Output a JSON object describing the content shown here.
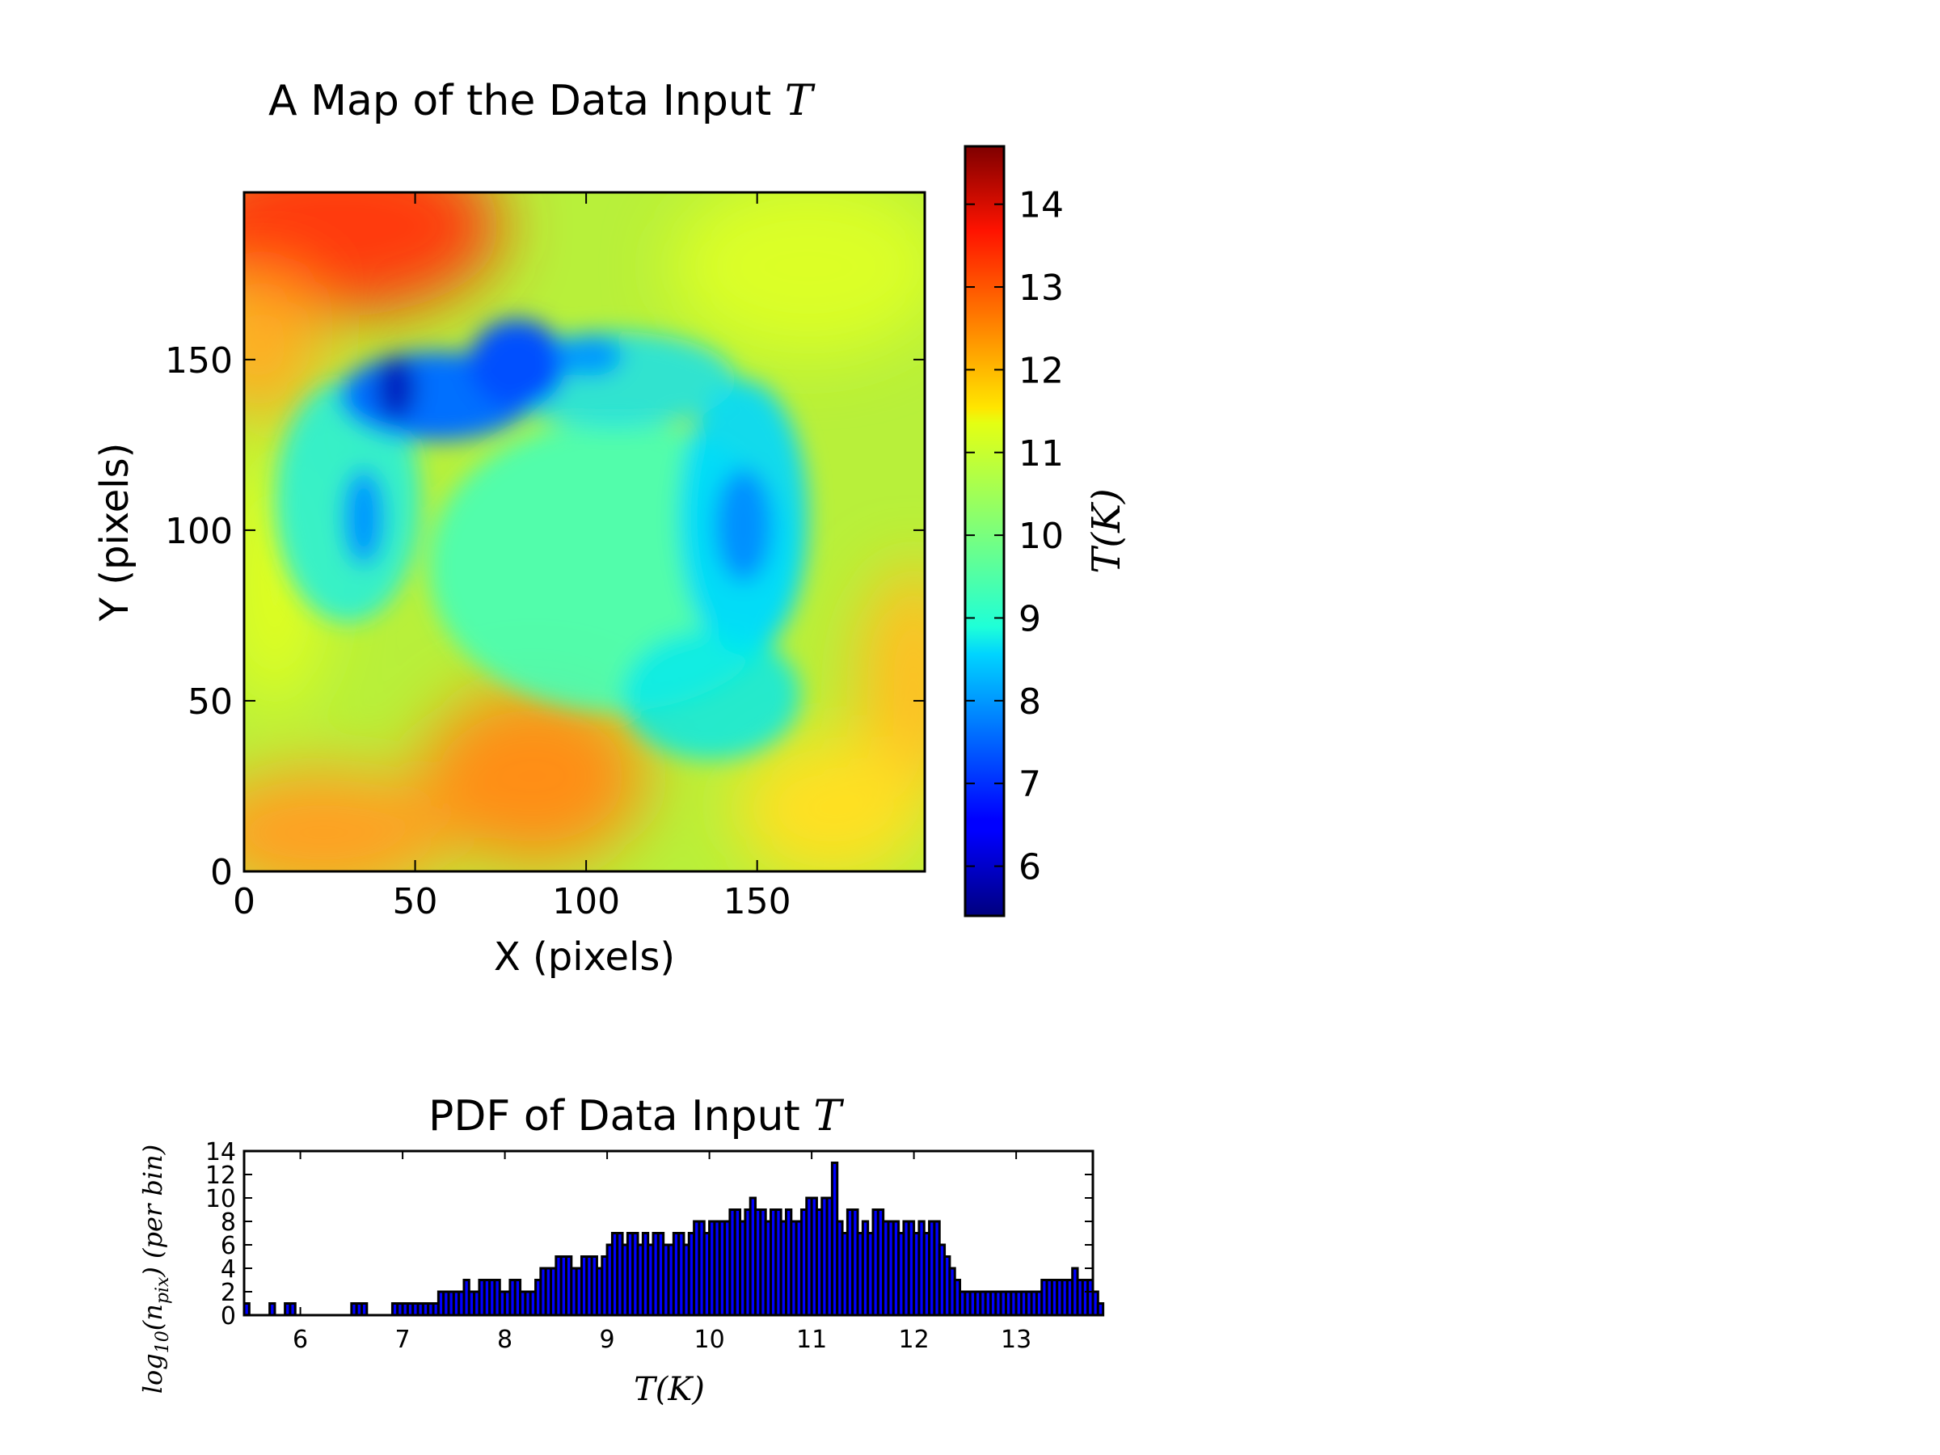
{
  "chart_data": [
    {
      "type": "heatmap",
      "title": "A Map of the Data Input",
      "title_var": "T",
      "xlabel": "X (pixels)",
      "ylabel": "Y (pixels)",
      "xlim": [
        0,
        199
      ],
      "ylim": [
        0,
        199
      ],
      "xticks": [
        0,
        50,
        100,
        150
      ],
      "yticks": [
        0,
        50,
        100,
        150
      ],
      "colormap": "jet",
      "colorbar": {
        "label": "T(K)",
        "range": [
          5.4,
          14.7
        ],
        "ticks": [
          6,
          7,
          8,
          9,
          10,
          11,
          12,
          13,
          14
        ]
      },
      "regions": [
        {
          "x": 40,
          "y": 185,
          "value": 13.4
        },
        {
          "x": 10,
          "y": 150,
          "value": 12.3
        },
        {
          "x": 85,
          "y": 30,
          "value": 12.6
        },
        {
          "x": 30,
          "y": 10,
          "value": 12.6
        },
        {
          "x": 190,
          "y": 55,
          "value": 12.0
        },
        {
          "x": 45,
          "y": 140,
          "value": 7.3
        },
        {
          "x": 80,
          "y": 145,
          "value": 7.7
        },
        {
          "x": 145,
          "y": 95,
          "value": 8.4
        },
        {
          "x": 120,
          "y": 75,
          "value": 9.3
        },
        {
          "x": 150,
          "y": 170,
          "value": 10.8
        }
      ]
    },
    {
      "type": "bar",
      "title": "PDF of Data Input",
      "title_var": "T",
      "xlabel": "T(K)",
      "ylabel": "log10(n_pix) (per bin)",
      "xlim": [
        5.45,
        13.75
      ],
      "ylim": [
        0,
        14
      ],
      "xticks": [
        6,
        7,
        8,
        9,
        10,
        11,
        12,
        13
      ],
      "yticks": [
        0,
        2,
        4,
        6,
        8,
        10,
        12,
        14
      ],
      "bin_start": 5.45,
      "bin_width": 0.05,
      "values": [
        1,
        0,
        0,
        0,
        0,
        1,
        0,
        0,
        1,
        1,
        0,
        0,
        0,
        0,
        0,
        0,
        0,
        0,
        0,
        0,
        0,
        1,
        1,
        1,
        0,
        0,
        0,
        0,
        0,
        1,
        1,
        1,
        1,
        1,
        1,
        1,
        1,
        1,
        2,
        2,
        2,
        2,
        2,
        3,
        2,
        2,
        3,
        3,
        3,
        3,
        2,
        2,
        3,
        3,
        2,
        2,
        2,
        3,
        4,
        4,
        4,
        5,
        5,
        5,
        4,
        4,
        5,
        5,
        5,
        4,
        5,
        6,
        7,
        7,
        6,
        7,
        7,
        6,
        7,
        6,
        7,
        7,
        6,
        6,
        7,
        7,
        6,
        7,
        8,
        8,
        7,
        8,
        8,
        8,
        8,
        9,
        9,
        8,
        9,
        10,
        9,
        9,
        8,
        9,
        9,
        8,
        9,
        8,
        8,
        9,
        10,
        10,
        9,
        10,
        10,
        13,
        8,
        7,
        9,
        9,
        7,
        8,
        7,
        9,
        9,
        8,
        8,
        8,
        7,
        8,
        8,
        7,
        8,
        7,
        8,
        8,
        6,
        5,
        4,
        3,
        2,
        2,
        2,
        2,
        2,
        2,
        2,
        2,
        2,
        2,
        2,
        2,
        2,
        2,
        2,
        2,
        3,
        3,
        3,
        3,
        3,
        3,
        4,
        3,
        3,
        3,
        2,
        1
      ]
    }
  ]
}
